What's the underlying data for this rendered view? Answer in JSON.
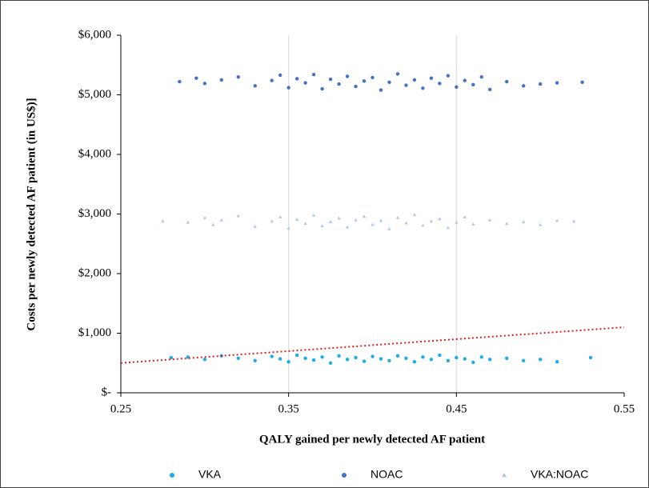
{
  "chart_data": {
    "type": "scatter",
    "x_label": "QALY gained per newly detected AF patient",
    "y_label": "Costs per newly detected AF patient (in US$)]",
    "xlim": [
      0.25,
      0.55
    ],
    "xticks": [
      0.25,
      0.35,
      0.45,
      0.55
    ],
    "ylim": [
      0,
      6000
    ],
    "yticks": [
      {
        "value": 0,
        "label": "$-"
      },
      {
        "value": 1000,
        "label": "$1,000"
      },
      {
        "value": 2000,
        "label": "$2,000"
      },
      {
        "value": 3000,
        "label": "$3,000"
      },
      {
        "value": 4000,
        "label": "$4,000"
      },
      {
        "value": 5000,
        "label": "$5,000"
      },
      {
        "value": 6000,
        "label": "$6,000"
      }
    ],
    "grid": "x",
    "legend": "bottom",
    "series": [
      {
        "name": "VKA",
        "color": "#1aaeea",
        "marker": "circle",
        "x": [
          0.28,
          0.29,
          0.3,
          0.31,
          0.32,
          0.33,
          0.34,
          0.345,
          0.35,
          0.355,
          0.36,
          0.365,
          0.37,
          0.375,
          0.38,
          0.385,
          0.39,
          0.395,
          0.4,
          0.405,
          0.41,
          0.415,
          0.42,
          0.425,
          0.43,
          0.435,
          0.44,
          0.445,
          0.45,
          0.455,
          0.46,
          0.465,
          0.47,
          0.48,
          0.49,
          0.5,
          0.51,
          0.53
        ],
        "values": [
          590,
          600,
          560,
          620,
          580,
          540,
          610,
          570,
          520,
          630,
          580,
          550,
          600,
          500,
          620,
          560,
          590,
          530,
          610,
          570,
          540,
          620,
          580,
          520,
          600,
          560,
          630,
          540,
          590,
          570,
          510,
          600,
          560,
          580,
          540,
          560,
          520,
          590
        ]
      },
      {
        "name": "NOAC",
        "color": "#4472c4",
        "marker": "circle",
        "x": [
          0.285,
          0.295,
          0.3,
          0.31,
          0.32,
          0.33,
          0.34,
          0.345,
          0.35,
          0.355,
          0.36,
          0.365,
          0.37,
          0.375,
          0.38,
          0.385,
          0.39,
          0.395,
          0.4,
          0.405,
          0.41,
          0.415,
          0.42,
          0.425,
          0.43,
          0.435,
          0.44,
          0.445,
          0.45,
          0.455,
          0.46,
          0.465,
          0.47,
          0.48,
          0.49,
          0.5,
          0.51,
          0.525
        ],
        "values": [
          5220,
          5280,
          5190,
          5250,
          5300,
          5150,
          5240,
          5330,
          5120,
          5270,
          5200,
          5340,
          5100,
          5260,
          5180,
          5310,
          5140,
          5230,
          5290,
          5080,
          5210,
          5350,
          5160,
          5250,
          5110,
          5280,
          5190,
          5320,
          5130,
          5240,
          5170,
          5300,
          5090,
          5220,
          5150,
          5180,
          5200,
          5210
        ]
      },
      {
        "name": "VKA:NOAC",
        "color": "#b4c7e7",
        "marker": "triangle",
        "x": [
          0.275,
          0.29,
          0.3,
          0.305,
          0.31,
          0.32,
          0.33,
          0.34,
          0.345,
          0.35,
          0.355,
          0.36,
          0.365,
          0.37,
          0.375,
          0.38,
          0.385,
          0.39,
          0.395,
          0.4,
          0.405,
          0.41,
          0.415,
          0.42,
          0.425,
          0.43,
          0.435,
          0.44,
          0.445,
          0.45,
          0.455,
          0.46,
          0.47,
          0.48,
          0.49,
          0.5,
          0.51,
          0.52
        ],
        "values": [
          2880,
          2860,
          2940,
          2820,
          2900,
          2970,
          2790,
          2880,
          2950,
          2760,
          2910,
          2840,
          2980,
          2800,
          2870,
          2930,
          2780,
          2900,
          2960,
          2820,
          2890,
          2750,
          2940,
          2850,
          2990,
          2810,
          2880,
          2920,
          2770,
          2860,
          2950,
          2830,
          2900,
          2840,
          2870,
          2820,
          2890,
          2880
        ]
      }
    ],
    "threshold": {
      "color": "#e0201b",
      "x": [
        0.25,
        0.55
      ],
      "values": [
        500,
        1100
      ]
    }
  }
}
